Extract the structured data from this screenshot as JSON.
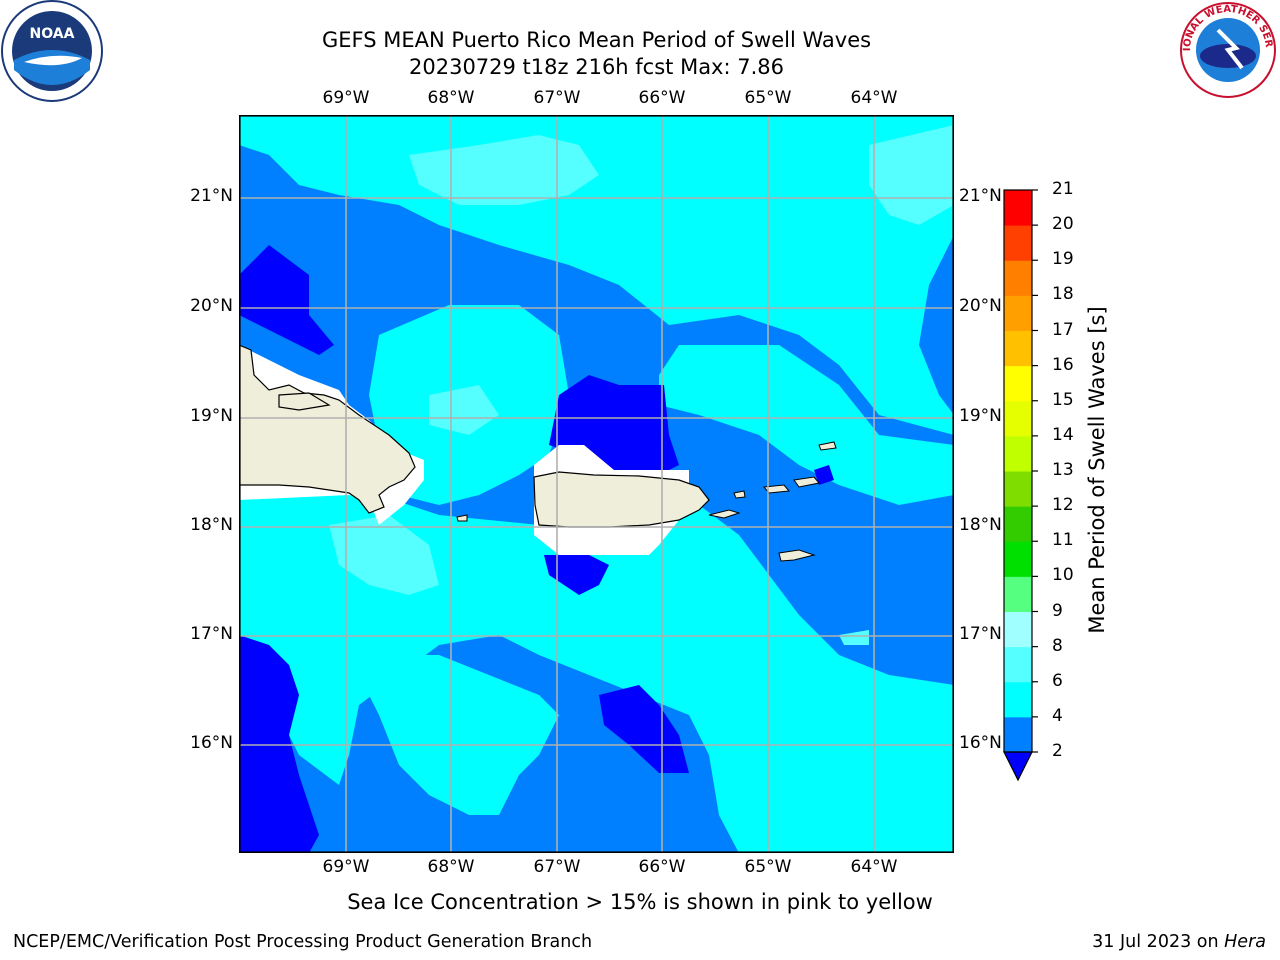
{
  "title_line1": "GEFS MEAN Puerto Rico Mean Period of Swell Waves",
  "title_line2": "20230729 t18z 216h fcst   Max: 7.86",
  "lon_labels": [
    "69°W",
    "68°W",
    "67°W",
    "66°W",
    "65°W",
    "64°W"
  ],
  "lat_labels": [
    "21°N",
    "20°N",
    "19°N",
    "18°N",
    "17°N",
    "16°N"
  ],
  "colorbar": {
    "title": "Mean Period of Swell Waves [s]",
    "ticks": [
      "2",
      "4",
      "6",
      "8",
      "9",
      "10",
      "11",
      "12",
      "13",
      "14",
      "15",
      "16",
      "17",
      "18",
      "19",
      "20",
      "21"
    ],
    "colors": [
      "#0000ff",
      "#0080ff",
      "#00ffff",
      "#55ffff",
      "#a0ffff",
      "#55ff80",
      "#00ff00",
      "#33dd00",
      "#99e600",
      "#ccff00",
      "#eeff00",
      "#ffff00",
      "#ffcc00",
      "#ffaa00",
      "#ff8000",
      "#ff4500",
      "#ff0000"
    ],
    "legend_colors": [
      "#0080ff",
      "#00ffff",
      "#55ffff",
      "#a0ffff",
      "#55ff80",
      "#00e000",
      "#33cc00",
      "#80dd00",
      "#c0ff00",
      "#e6ff00",
      "#ffff00",
      "#ffc000",
      "#ffa000",
      "#ff8000",
      "#ff4000",
      "#ff0000"
    ]
  },
  "map_colors": {
    "ocean_deep": "#0080ff",
    "ocean_low": "#0000ff",
    "mid": "#00ffff",
    "light": "#55ffff",
    "land": "#efeedb",
    "grid": "#b0b0b0"
  },
  "subnote": "Sea Ice Concentration > 15% is shown in pink to yellow",
  "footer_left": "NCEP/EMC/Verification Post Processing Product Generation Branch",
  "footer_date": "31 Jul 2023 on ",
  "footer_host": "Hera",
  "logos": {
    "noaa": "NOAA",
    "nws": "NATIONAL WEATHER SERVICE"
  }
}
